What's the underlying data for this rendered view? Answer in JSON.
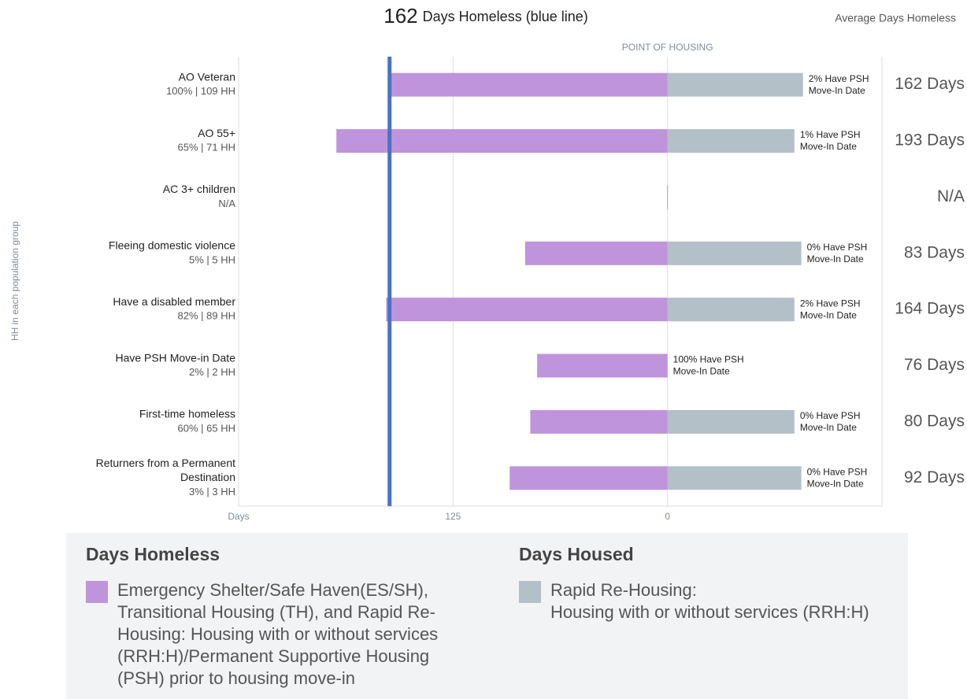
{
  "chart_data": {
    "type": "diverging-bar",
    "reference_line": {
      "value": 162,
      "color": "#4a72c4"
    },
    "title": "Days Homeless (blue line)",
    "right_header": "Average Days Homeless",
    "annotation": "POINT OF HOUSING",
    "y_label": "HH in each population group",
    "categories": [
      [
        "AO Veteran"
      ],
      [
        "AO 55+"
      ],
      [
        "AC 3+ children"
      ],
      [
        "Fleeing domestic violence"
      ],
      [
        "Have a disabled member"
      ],
      [
        "Have PSH Move-in Date"
      ],
      [
        "First-time homeless"
      ],
      [
        "Returners from a Permanent",
        "Destination"
      ]
    ],
    "category_subtitles": [
      "100% | 109 HH",
      "65% | 71 HH",
      "N/A",
      "5% | 5 HH",
      "82% | 89 HH",
      "2% | 2 HH",
      "60% | 65 HH",
      "3% | 3 HH"
    ],
    "xlim": [
      250,
      -125
    ],
    "xticks": [
      {
        "value": 250,
        "label": "Days"
      },
      125,
      0
    ],
    "grid": true,
    "legend_groups": [
      "Days Homeless",
      "Days Housed"
    ],
    "series": [
      {
        "name": "Emergency Shelter/Safe Haven(ES/SH), Transitional Housing (TH), and Rapid Re-Housing: Housing with or without services (RRH:H)/Permanent Supportive Housing (PSH) prior to housing move-in",
        "color": "#c094dc",
        "direction": "left",
        "values": [
          162,
          193,
          null,
          83,
          164,
          76,
          80,
          92
        ],
        "value_labels": [
          "162 Days",
          "193 Days",
          "N/A",
          "83 Days",
          "164 Days",
          "76 Days",
          "80 Days",
          "92 Days"
        ]
      },
      {
        "name": "Rapid Re-Housing:\nHousing with or without services (RRH:H)",
        "color": "#b4c0c8",
        "direction": "right",
        "values": [
          79,
          74,
          null,
          78,
          74,
          0,
          74,
          78
        ],
        "bar_labels": [
          [
            "2% Have PSH",
            "Move-In Date"
          ],
          [
            "1% Have PSH",
            "Move-In Date"
          ],
          null,
          [
            "0% Have PSH",
            "Move-In Date"
          ],
          [
            "2% Have PSH",
            "Move-In Date"
          ],
          [
            "100% Have PSH",
            "Move-In Date"
          ],
          [
            "0% Have PSH",
            "Move-In Date"
          ],
          [
            "0% Have PSH",
            "Move-In Date"
          ]
        ]
      }
    ]
  }
}
